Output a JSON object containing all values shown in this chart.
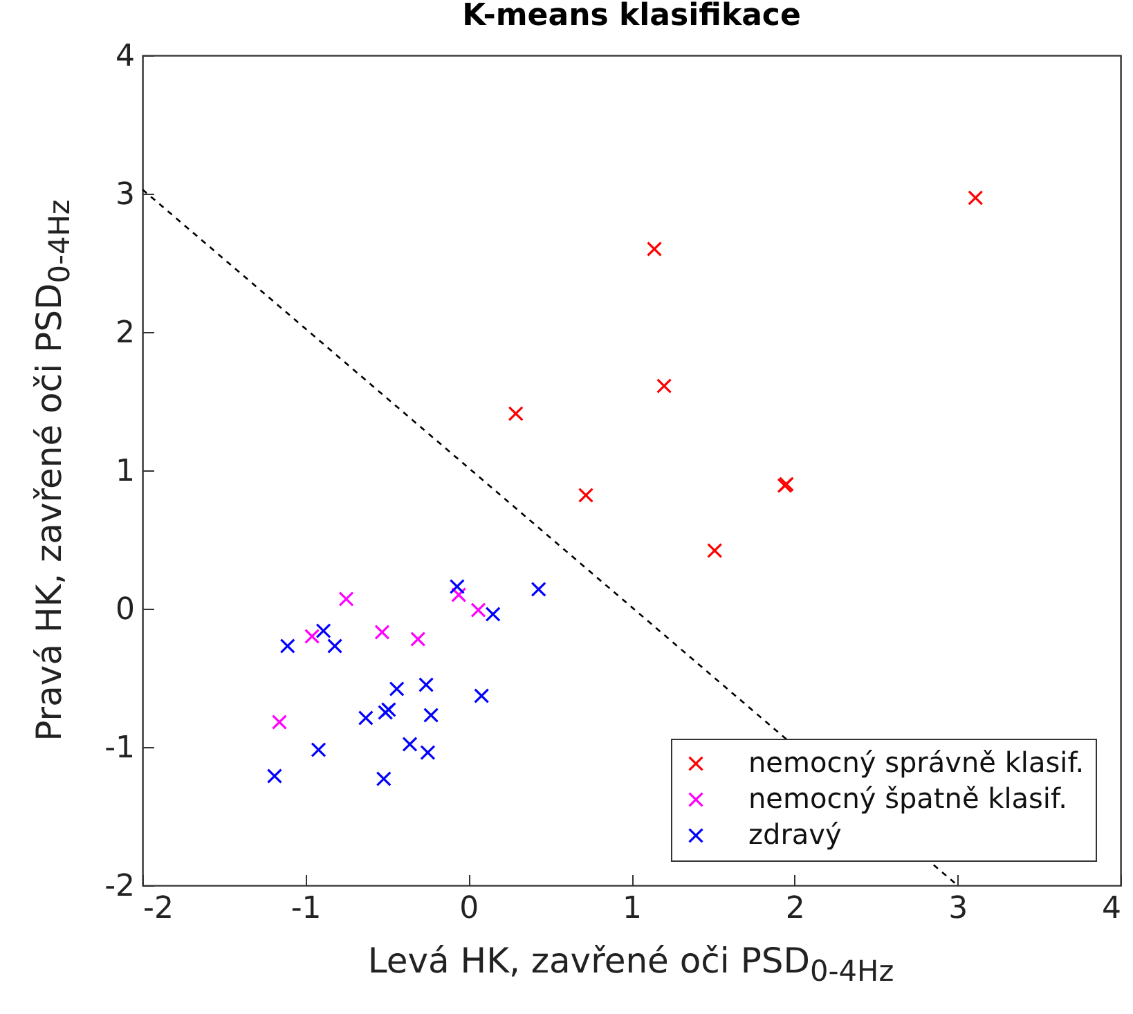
{
  "chart_data": {
    "type": "scatter",
    "title": "K-means klasifikace",
    "xlabel": "Levá HK, zavřené oči PSD$_{0-4Hz}$",
    "ylabel": "Pravá HK, zavřené oči PSD$_{0-4Hz}$",
    "xlim": [
      -2,
      4
    ],
    "ylim": [
      -2,
      4
    ],
    "xticks": [
      -2,
      -1,
      0,
      1,
      2,
      3,
      4
    ],
    "yticks": [
      -2,
      -1,
      0,
      1,
      2,
      3,
      4
    ],
    "grid": false,
    "legend": "bottom right",
    "marker": "cross",
    "series": [
      {
        "name": "nemocný správně klasif.",
        "color": "#ff0000",
        "x": [
          3.11,
          1.14,
          1.2,
          0.29,
          0.72,
          1.94,
          1.95,
          1.51
        ],
        "values": [
          2.97,
          2.6,
          1.61,
          1.41,
          0.82,
          0.89,
          0.9,
          0.42
        ]
      },
      {
        "name": "nemocný špatně klasif.",
        "color": "#ff00ff",
        "x": [
          -0.75,
          -0.96,
          -0.53,
          -0.31,
          -0.06,
          0.06,
          -1.16
        ],
        "values": [
          0.07,
          -0.2,
          -0.17,
          -0.22,
          0.1,
          -0.01,
          -0.82
        ]
      },
      {
        "name": "zdravý",
        "color": "#0000ff",
        "x": [
          -0.07,
          0.43,
          0.15,
          -1.11,
          -0.89,
          -0.82,
          -0.44,
          -0.26,
          0.08,
          -0.63,
          -0.51,
          -0.49,
          -0.23,
          -0.36,
          -0.25,
          -0.92,
          -1.19,
          -0.52
        ],
        "values": [
          0.16,
          0.14,
          -0.04,
          -0.27,
          -0.16,
          -0.27,
          -0.58,
          -0.55,
          -0.63,
          -0.79,
          -0.75,
          -0.73,
          -0.77,
          -0.98,
          -1.04,
          -1.02,
          -1.21,
          -1.23
        ]
      },
      {
        "type": "line",
        "color": "#000000",
        "line_style": "dashed",
        "marker": "none",
        "x": [
          -2,
          3
        ],
        "values": [
          3.03,
          -2
        ]
      }
    ]
  }
}
